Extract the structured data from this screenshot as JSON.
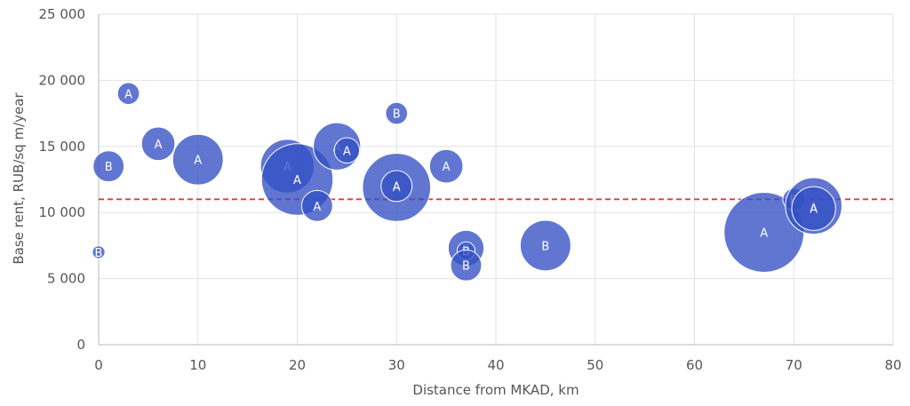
{
  "chart_data": {
    "type": "scatter",
    "variant": "bubble",
    "title": "",
    "xlabel": "Distance from MKAD, km",
    "ylabel": "Base rent, RUB/sq m/year",
    "xlim": [
      0,
      80
    ],
    "ylim": [
      0,
      25000
    ],
    "xticks": [
      0,
      10,
      20,
      30,
      40,
      50,
      60,
      70,
      80
    ],
    "yticks": [
      0,
      5000,
      10000,
      15000,
      20000,
      25000
    ],
    "xtick_labels": [
      "0",
      "10",
      "20",
      "30",
      "40",
      "50",
      "60",
      "70",
      "80"
    ],
    "ytick_labels": [
      "0",
      "5 000",
      "10 000",
      "15 000",
      "20 000",
      "25 000"
    ],
    "grid": true,
    "reference_line": {
      "y": 11000,
      "style": "dashed",
      "color": "#ee3344"
    },
    "bubble_color": "#3350c4",
    "points": [
      {
        "x": 0,
        "y": 7000,
        "size": 1,
        "label": "B"
      },
      {
        "x": 1,
        "y": 13500,
        "size": 6,
        "label": "B"
      },
      {
        "x": 3,
        "y": 19000,
        "size": 3,
        "label": "A"
      },
      {
        "x": 6,
        "y": 15200,
        "size": 7,
        "label": "A"
      },
      {
        "x": 10,
        "y": 14000,
        "size": 16,
        "label": "A"
      },
      {
        "x": 19,
        "y": 13500,
        "size": 18,
        "label": "A"
      },
      {
        "x": 20,
        "y": 12500,
        "size": 32,
        "label": "A"
      },
      {
        "x": 22,
        "y": 10500,
        "size": 6,
        "label": "A"
      },
      {
        "x": 24,
        "y": 15000,
        "size": 14,
        "label": "A"
      },
      {
        "x": 25,
        "y": 14700,
        "size": 4,
        "label": "A"
      },
      {
        "x": 30,
        "y": 17500,
        "size": 3,
        "label": "B"
      },
      {
        "x": 30,
        "y": 11900,
        "size": 29,
        "label": "A"
      },
      {
        "x": 30,
        "y": 12000,
        "size": 6,
        "label": "A"
      },
      {
        "x": 35,
        "y": 13500,
        "size": 7,
        "label": "A"
      },
      {
        "x": 37,
        "y": 7300,
        "size": 8,
        "label": "B"
      },
      {
        "x": 37,
        "y": 7100,
        "size": 2,
        "label": "B"
      },
      {
        "x": 37,
        "y": 6000,
        "size": 6,
        "label": "B"
      },
      {
        "x": 45,
        "y": 7500,
        "size": 16,
        "label": "B"
      },
      {
        "x": 67,
        "y": 8500,
        "size": 40,
        "label": "A"
      },
      {
        "x": 70,
        "y": 11000,
        "size": 3,
        "label": "B"
      },
      {
        "x": 72,
        "y": 10500,
        "size": 20,
        "label": "A"
      },
      {
        "x": 72,
        "y": 10300,
        "size": 12,
        "label": "A"
      }
    ]
  }
}
